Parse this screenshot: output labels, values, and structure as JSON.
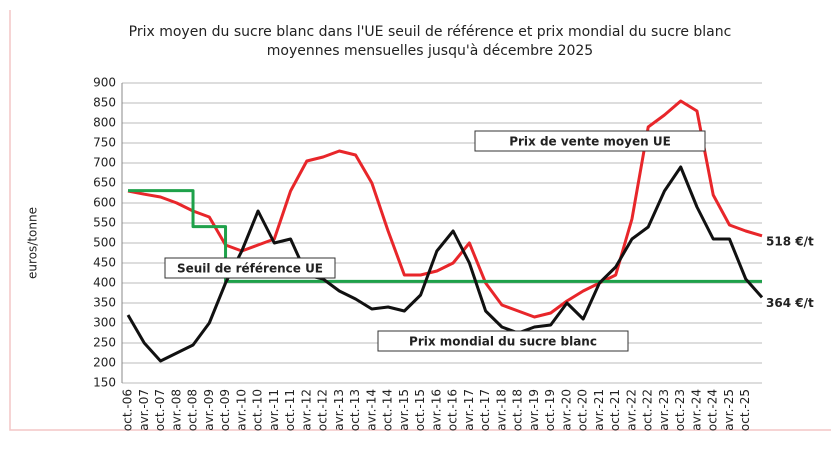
{
  "chart_data": {
    "type": "line",
    "title": "Prix moyen du sucre blanc dans l'UE seuil de référence et prix mondial du sucre blanc",
    "subtitle": "moyennes mensuelles jusqu'à décembre 2025",
    "y_label": "euros/tonne",
    "categories": [
      "oct.-06",
      "avr.-07",
      "oct.-07",
      "avr.-08",
      "oct.-08",
      "avr.-09",
      "oct.-09",
      "avr.-10",
      "oct.-10",
      "avr.-11",
      "oct.-11",
      "avr.-12",
      "oct.-12",
      "avr.-13",
      "oct.-13",
      "avr.-14",
      "oct.-14",
      "avr.-15",
      "oct.-15",
      "avr.-16",
      "oct.-16",
      "avr.-17",
      "oct.-17",
      "avr.-18",
      "oct.-18",
      "avr.-19",
      "oct.-19",
      "avr.-20",
      "oct.-20",
      "avr.-21",
      "oct.-21",
      "avr.-22",
      "oct.-22",
      "avr.-23",
      "oct.-23",
      "avr.-24",
      "oct.-24",
      "avr.-25",
      "oct.-25",
      null
    ],
    "series": [
      {
        "name": "Prix de vente moyen UE",
        "color": "#e8262a",
        "values": [
          630,
          622,
          615,
          600,
          580,
          565,
          495,
          480,
          495,
          510,
          630,
          705,
          715,
          730,
          720,
          650,
          530,
          420,
          420,
          430,
          450,
          500,
          400,
          345,
          330,
          315,
          325,
          355,
          380,
          400,
          420,
          560,
          790,
          820,
          855,
          830,
          620,
          545,
          530,
          518
        ],
        "value_labels": [
          null,
          null,
          null,
          null,
          null,
          null,
          null,
          null,
          null,
          null,
          null,
          null,
          null,
          null,
          null,
          null,
          null,
          null,
          null,
          null,
          null,
          null,
          null,
          null,
          null,
          null,
          null,
          null,
          null,
          null,
          null,
          null,
          null,
          null,
          null,
          null,
          null,
          null,
          null,
          "518 €/t"
        ]
      },
      {
        "name": "Seuil de référence UE",
        "color": "#1ea14a",
        "step": true,
        "values": [
          631,
          631,
          631,
          631,
          541,
          541,
          404,
          404,
          404,
          404,
          404,
          404,
          404,
          404,
          404,
          404,
          404,
          404,
          404,
          404,
          404,
          404,
          404,
          404,
          404,
          404,
          404,
          404,
          404,
          404,
          404,
          404,
          404,
          404,
          404,
          404,
          404,
          404,
          404,
          404
        ]
      },
      {
        "name": "Prix mondial du sucre blanc",
        "color": "#111111",
        "values": [
          320,
          250,
          205,
          225,
          245,
          300,
          400,
          480,
          580,
          500,
          510,
          420,
          410,
          380,
          360,
          335,
          340,
          330,
          370,
          480,
          530,
          450,
          330,
          290,
          275,
          290,
          295,
          350,
          310,
          400,
          440,
          510,
          540,
          630,
          690,
          590,
          510,
          510,
          410,
          364
        ],
        "value_labels": [
          null,
          null,
          null,
          null,
          null,
          null,
          null,
          null,
          null,
          null,
          null,
          null,
          null,
          null,
          null,
          null,
          null,
          null,
          null,
          null,
          null,
          null,
          null,
          null,
          null,
          null,
          null,
          null,
          null,
          null,
          null,
          null,
          null,
          null,
          null,
          null,
          null,
          null,
          null,
          "364 €/t"
        ]
      }
    ],
    "ylim": [
      150,
      900
    ],
    "yticks": [
      150,
      200,
      250,
      300,
      350,
      400,
      450,
      500,
      550,
      600,
      650,
      700,
      750,
      800,
      850,
      900
    ],
    "grid": true
  }
}
